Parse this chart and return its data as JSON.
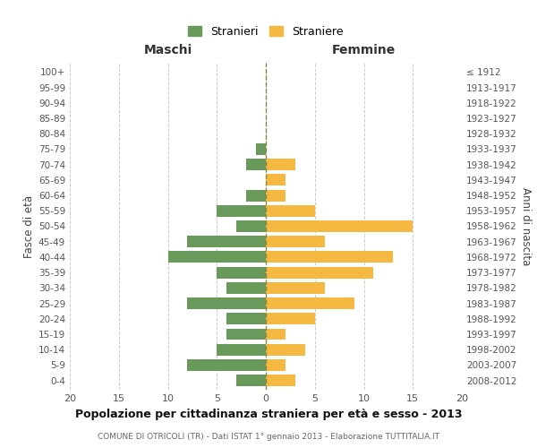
{
  "age_groups_bottom_to_top": [
    "0-4",
    "5-9",
    "10-14",
    "15-19",
    "20-24",
    "25-29",
    "30-34",
    "35-39",
    "40-44",
    "45-49",
    "50-54",
    "55-59",
    "60-64",
    "65-69",
    "70-74",
    "75-79",
    "80-84",
    "85-89",
    "90-94",
    "95-99",
    "100+"
  ],
  "birth_years_bottom_to_top": [
    "2008-2012",
    "2003-2007",
    "1998-2002",
    "1993-1997",
    "1988-1992",
    "1983-1987",
    "1978-1982",
    "1973-1977",
    "1968-1972",
    "1963-1967",
    "1958-1962",
    "1953-1957",
    "1948-1952",
    "1943-1947",
    "1938-1942",
    "1933-1937",
    "1928-1932",
    "1923-1927",
    "1918-1922",
    "1913-1917",
    "≤ 1912"
  ],
  "maschi_bottom_to_top": [
    3,
    8,
    5,
    4,
    4,
    8,
    4,
    5,
    10,
    8,
    3,
    5,
    2,
    0,
    2,
    1,
    0,
    0,
    0,
    0,
    0
  ],
  "femmine_bottom_to_top": [
    3,
    2,
    4,
    2,
    5,
    9,
    6,
    11,
    13,
    6,
    15,
    5,
    2,
    2,
    3,
    0,
    0,
    0,
    0,
    0,
    0
  ],
  "color_maschi": "#6a9a5b",
  "color_femmine": "#f5b942",
  "title": "Popolazione per cittadinanza straniera per età e sesso - 2013",
  "subtitle": "COMUNE DI OTRICOLI (TR) - Dati ISTAT 1° gennaio 2013 - Elaborazione TUTTITALIA.IT",
  "ylabel_left": "Fasce di età",
  "ylabel_right": "Anni di nascita",
  "header_left": "Maschi",
  "header_right": "Femmine",
  "legend_maschi": "Stranieri",
  "legend_femmine": "Straniere",
  "xlim": 20,
  "bg_color": "#ffffff",
  "grid_color": "#cccccc",
  "bar_height": 0.75
}
